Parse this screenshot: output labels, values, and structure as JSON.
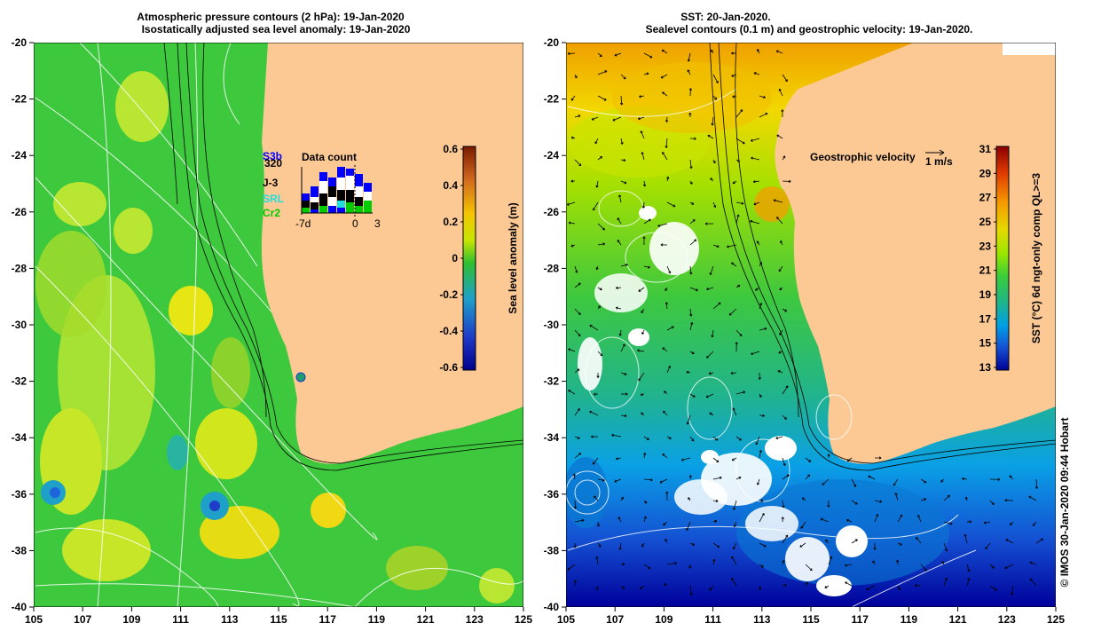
{
  "left_panel": {
    "title_line1": "Atmospheric pressure contours (2 hPa): 19-Jan-2020",
    "title_line2": "Isostatically adjusted sea level anomaly: 19-Jan-2020",
    "colorbar_label": "Sea level anomaly (m)",
    "colorbar_ticks": [
      "0.6",
      "0.4",
      "0.2",
      "0",
      "-0.2",
      "-0.4",
      "-0.6"
    ],
    "colorbar_colors": [
      "#7a1a00",
      "#d2691e",
      "#f5c400",
      "#c8e600",
      "#2fbf2f",
      "#1fa0c8",
      "#1e3cc8",
      "#00008b"
    ],
    "inset": {
      "title": "Data count",
      "missions": [
        {
          "label": "S3b",
          "color": "#0000ff"
        },
        {
          "label": "320",
          "color": "#000000"
        },
        {
          "label": "J-3",
          "color": "#000000"
        },
        {
          "label": "SRL",
          "color": "#22dddd"
        },
        {
          "label": "Cr2",
          "color": "#00cc00"
        }
      ],
      "x_ticks": [
        "-7d",
        "0",
        "3"
      ]
    }
  },
  "right_panel": {
    "title_line1": "SST: 20-Jan-2020.",
    "title_line2": "Sealevel contours (0.1 m) and geostrophic velocity: 19-Jan-2020.",
    "colorbar_label": "SST (°C) 6d ngt-only comp QL>=3",
    "colorbar_ticks": [
      "31",
      "29",
      "27",
      "25",
      "23",
      "21",
      "19",
      "17",
      "15",
      "13"
    ],
    "colorbar_colors": [
      "#8b0000",
      "#e03a00",
      "#f59a00",
      "#e6d800",
      "#9ae600",
      "#3acd3a",
      "#1eb48c",
      "#00a0e6",
      "#1450d2",
      "#000096"
    ],
    "velocity_label": "Geostrophic velocity",
    "velocity_scale": "1 m/s"
  },
  "axes": {
    "x_ticks": [
      "105",
      "107",
      "109",
      "111",
      "113",
      "115",
      "117",
      "119",
      "121",
      "123",
      "125"
    ],
    "y_ticks": [
      "-20",
      "-22",
      "-24",
      "-26",
      "-28",
      "-30",
      "-32",
      "-34",
      "-36",
      "-38",
      "-40"
    ]
  },
  "credit": "© IMOS 30-Jan-2020 09:44 Hobart",
  "colors": {
    "land": "#fcc995",
    "ocean_green": "#3ec83e",
    "anomaly_yellow": "#b8e632"
  }
}
